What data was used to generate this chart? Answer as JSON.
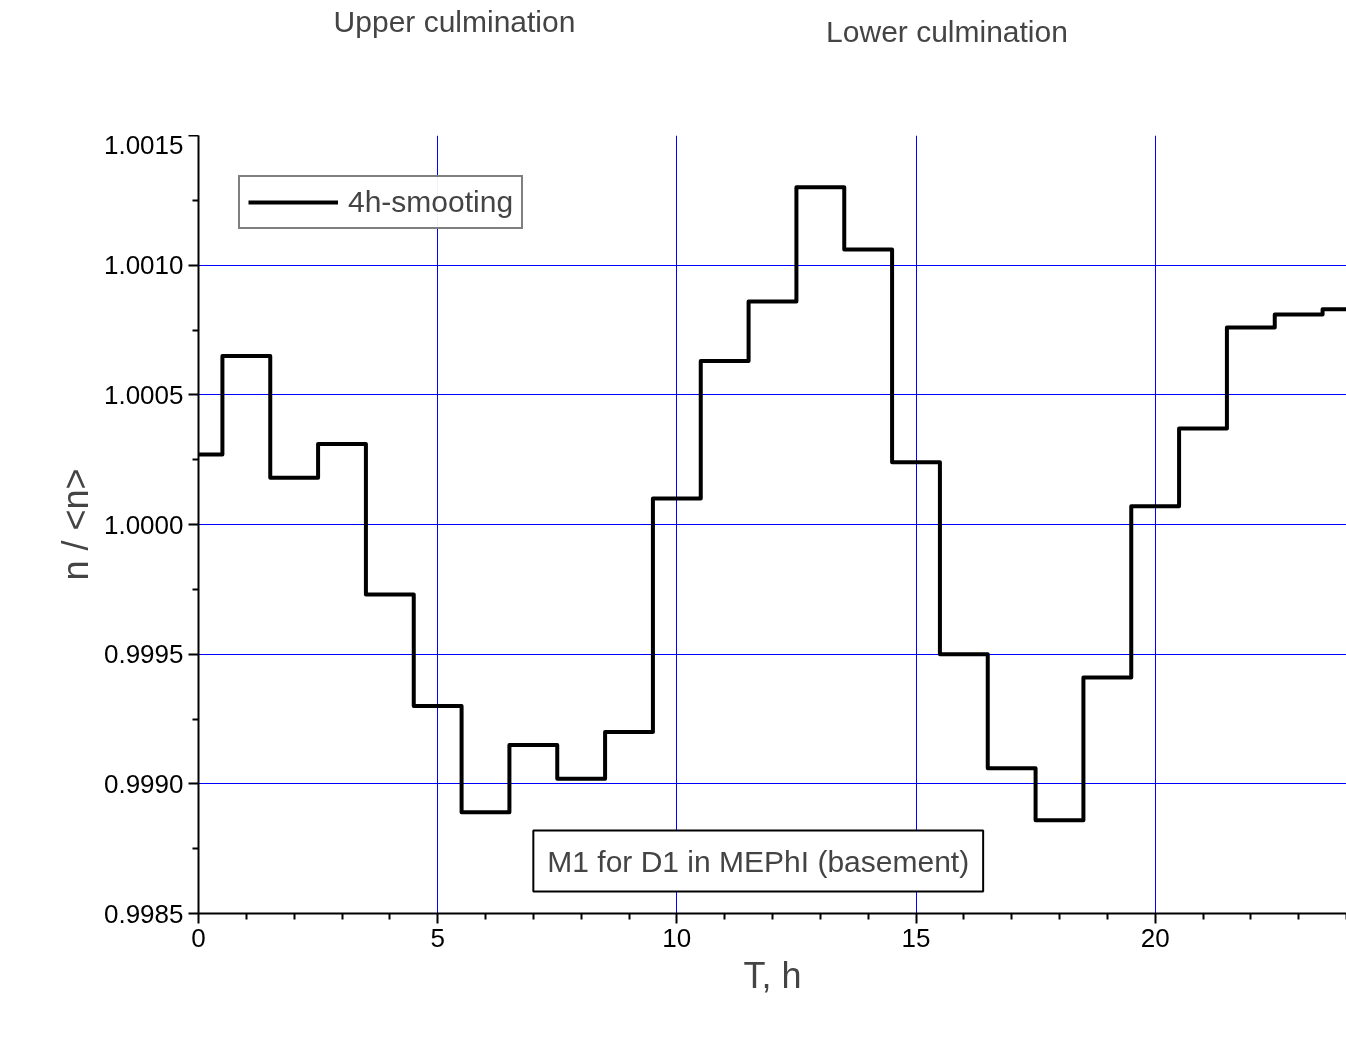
{
  "chart_data": {
    "type": "step",
    "xlabel": "T, h",
    "ylabel": "n / <n>",
    "x": [
      0,
      1,
      2,
      3,
      4,
      5,
      6,
      7,
      8,
      9,
      10,
      11,
      12,
      13,
      14,
      15,
      16,
      17,
      18,
      19,
      20,
      21,
      22,
      23,
      24
    ],
    "series": [
      {
        "name": "4h-smooting",
        "color": "#000000",
        "values": [
          1.00027,
          1.00065,
          1.00018,
          1.00031,
          0.99973,
          0.9993,
          0.99889,
          0.99915,
          0.99902,
          0.9992,
          1.0001,
          1.00063,
          1.00086,
          1.0013,
          1.00106,
          1.00024,
          0.9995,
          0.99906,
          0.99886,
          0.99941,
          1.00007,
          1.00037,
          1.00076,
          1.00081,
          1.00083
        ]
      }
    ],
    "xlim": [
      0,
      24
    ],
    "xticks": [
      0,
      5,
      10,
      15,
      20
    ],
    "ylim": [
      0.9985,
      1.0015
    ],
    "yticks": [
      {
        "value": 0.9985,
        "label": "0.9985"
      },
      {
        "value": 0.999,
        "label": "0.9990"
      },
      {
        "value": 0.9995,
        "label": "0.9995"
      },
      {
        "value": 1.0,
        "label": "1.0000"
      },
      {
        "value": 1.0005,
        "label": "1.0005"
      },
      {
        "value": 1.001,
        "label": "1.0010"
      },
      {
        "value": 1.0015,
        "label": "1.0015"
      }
    ],
    "grid": true,
    "legend": "top left",
    "line_style": "solid",
    "annotations": [
      "Upper culmination",
      "Lower culmination",
      "M1 for D1 in MEPhI (basement)"
    ]
  }
}
